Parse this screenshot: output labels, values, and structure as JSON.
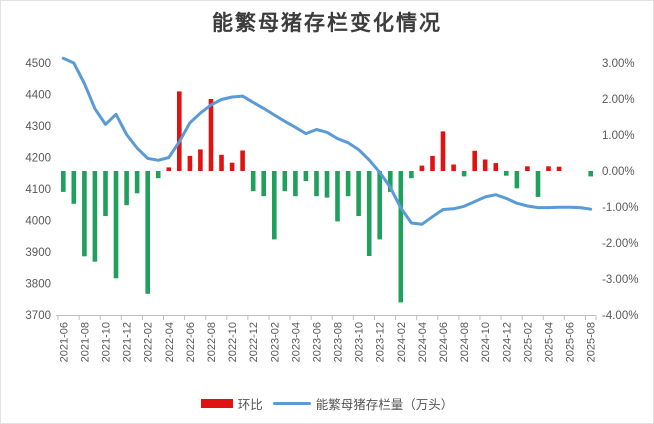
{
  "title": "能繁母猪存栏变化情况",
  "legend": {
    "bar_label": "环比",
    "line_label": "能繁母猪存栏量（万头）"
  },
  "colors": {
    "bar_positive": "#e01212",
    "bar_negative": "#1fa05c",
    "line": "#5b9bd5",
    "axis_text": "#595959",
    "axis_line": "#bfbfbf",
    "title_text": "#3d3d3d",
    "background": "#ffffff"
  },
  "chart_data": {
    "type": "bar+line",
    "title": "能繁母猪存栏变化情况",
    "x": [
      "2021-06",
      "2021-07",
      "2021-08",
      "2021-09",
      "2021-10",
      "2021-11",
      "2021-12",
      "2022-01",
      "2022-02",
      "2022-03",
      "2022-04",
      "2022-05",
      "2022-06",
      "2022-07",
      "2022-08",
      "2022-09",
      "2022-10",
      "2022-11",
      "2022-12",
      "2023-01",
      "2023-02",
      "2023-03",
      "2023-04",
      "2023-05",
      "2023-06",
      "2023-07",
      "2023-08",
      "2023-09",
      "2023-10",
      "2023-11",
      "2023-12",
      "2024-01",
      "2024-02",
      "2024-03",
      "2024-04",
      "2024-05",
      "2024-06",
      "2024-07",
      "2024-08",
      "2024-09",
      "2024-10",
      "2024-11",
      "2024-12",
      "2025-01",
      "2025-02",
      "2025-03",
      "2025-04",
      "2025-05",
      "2025-06",
      "2025-07",
      "2025-08"
    ],
    "series": [
      {
        "name": "环比",
        "type": "bar",
        "axis": "right",
        "unit": "%",
        "values": [
          -0.58,
          -0.91,
          -2.37,
          -2.52,
          -1.25,
          -2.98,
          -0.95,
          -0.62,
          -3.41,
          -0.2,
          0.1,
          2.21,
          0.42,
          0.6,
          2.0,
          0.45,
          0.23,
          0.57,
          -0.56,
          -0.7,
          -1.9,
          -0.56,
          -0.7,
          -0.28,
          -0.7,
          -0.74,
          -1.4,
          -0.7,
          -1.25,
          -2.36,
          -1.9,
          -0.58,
          -3.65,
          -0.2,
          0.15,
          0.42,
          1.1,
          0.18,
          -0.15,
          0.56,
          0.32,
          0.22,
          -0.13,
          -0.48,
          0.13,
          -0.72,
          0.13,
          0.12,
          0.0,
          0.0,
          -0.15
        ]
      },
      {
        "name": "能繁母猪存栏量（万头）",
        "type": "line",
        "axis": "left",
        "unit": "万头",
        "values": [
          4515,
          4500,
          4435,
          4355,
          4305,
          4337,
          4273,
          4230,
          4197,
          4191,
          4200,
          4250,
          4310,
          4341,
          4367,
          4384,
          4392,
          4395,
          4375,
          4356,
          4335,
          4315,
          4296,
          4276,
          4289,
          4280,
          4260,
          4247,
          4225,
          4192,
          4153,
          4105,
          4040,
          3992,
          3988,
          4012,
          4035,
          4037,
          4045,
          4060,
          4075,
          4082,
          4070,
          4055,
          4046,
          4041,
          4041,
          4042,
          4042,
          4041,
          4036
        ]
      }
    ],
    "left_axis": {
      "min": 3700,
      "max": 4500,
      "ticks": [
        "4500",
        "4400",
        "4300",
        "4200",
        "4100",
        "4000",
        "3900",
        "3800",
        "3700"
      ]
    },
    "right_axis": {
      "min": -4,
      "max": 3,
      "ticks": [
        "3.00%",
        "2.00%",
        "1.00%",
        "0.00%",
        "-1.00%",
        "-2.00%",
        "-3.00%",
        "-4.00%"
      ]
    },
    "x_tick_every": 2,
    "grid": "none",
    "legend_position": "bottom"
  }
}
